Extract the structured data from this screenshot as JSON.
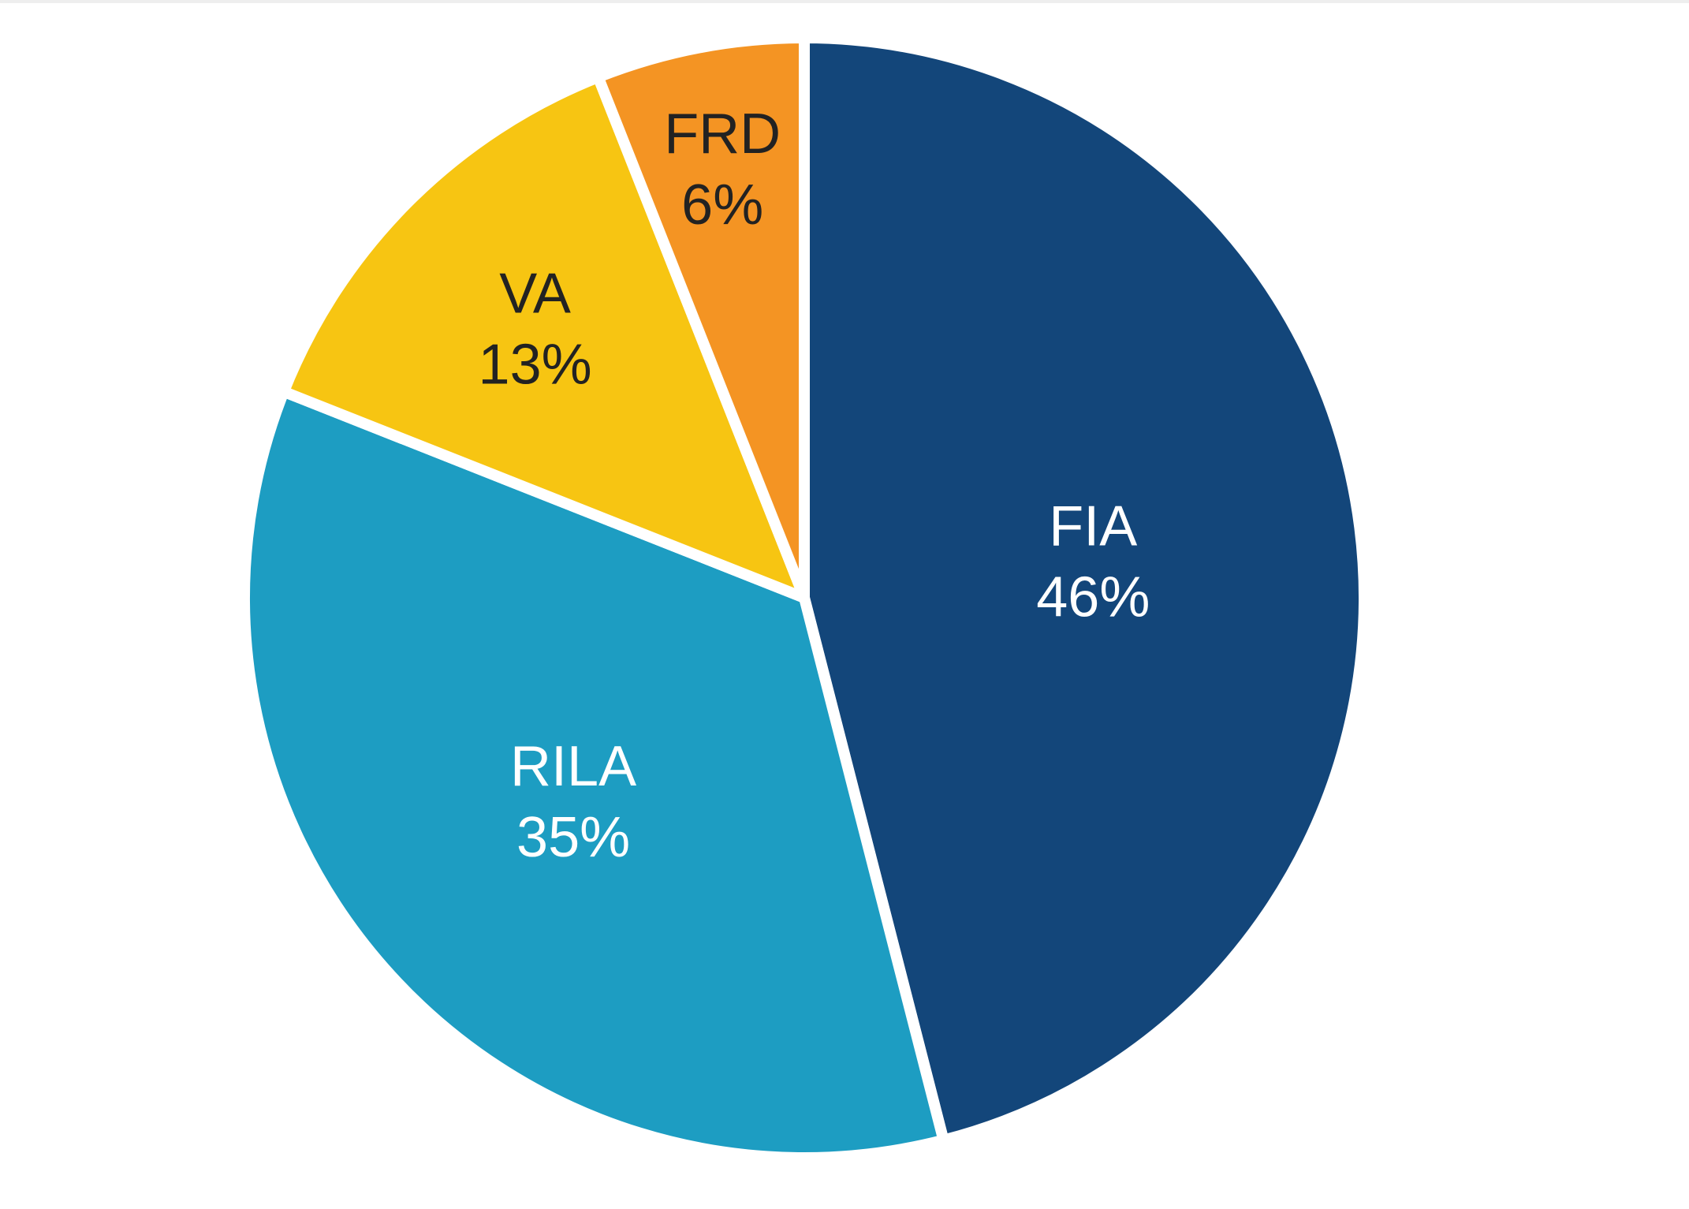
{
  "chart_data": {
    "type": "pie",
    "slices": [
      {
        "label": "FIA",
        "value": 46,
        "value_label": "46%",
        "color": "#13467A",
        "text_color": "#ffffff"
      },
      {
        "label": "RILA",
        "value": 35,
        "value_label": "35%",
        "color": "#1D9DC2",
        "text_color": "#ffffff"
      },
      {
        "label": "VA",
        "value": 13,
        "value_label": "13%",
        "color": "#F7C512",
        "text_color": "#222222"
      },
      {
        "label": "FRD",
        "value": 6,
        "value_label": "6%",
        "color": "#F49423",
        "text_color": "#222222"
      }
    ],
    "start_angle": "12 o'clock",
    "direction": "clockwise",
    "legend": "none"
  }
}
